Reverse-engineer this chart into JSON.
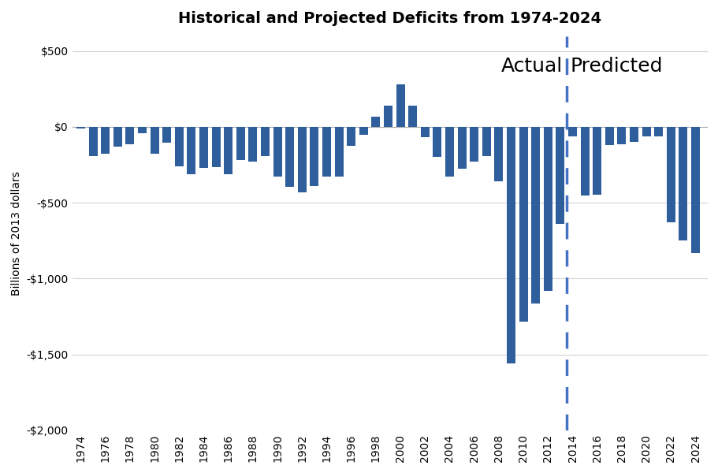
{
  "title": "Historical and Projected Deficits from 1974-2024",
  "ylabel": "Billions of 2013 dollars",
  "ylim": [
    -2000,
    600
  ],
  "yticks": [
    500,
    0,
    -500,
    -1000,
    -1500,
    -2000
  ],
  "ytick_labels": [
    "$500",
    "$0",
    "-$500",
    "-$1,000",
    "-$1,500",
    "-$2,000"
  ],
  "bar_color": "#2E5E9B",
  "dashed_line_x": 2013.5,
  "actual_label": "Actual",
  "predicted_label": "Predicted",
  "background_color": "#FFFFFF",
  "years": [
    1974,
    1975,
    1976,
    1977,
    1978,
    1979,
    1980,
    1981,
    1982,
    1983,
    1984,
    1985,
    1986,
    1987,
    1988,
    1989,
    1990,
    1991,
    1992,
    1993,
    1994,
    1995,
    1996,
    1997,
    1998,
    1999,
    2000,
    2001,
    2002,
    2003,
    2004,
    2005,
    2006,
    2007,
    2008,
    2009,
    2010,
    2011,
    2012,
    2013,
    2014,
    2015,
    2016,
    2017,
    2018,
    2019,
    2020,
    2021,
    2022,
    2023,
    2024
  ],
  "values": [
    -10,
    -195,
    -175,
    -130,
    -115,
    -40,
    -175,
    -105,
    -260,
    -310,
    -270,
    -265,
    -310,
    -220,
    -230,
    -190,
    -330,
    -395,
    -430,
    -390,
    -330,
    -325,
    -125,
    -50,
    70,
    140,
    280,
    140,
    -70,
    -200,
    -330,
    -275,
    -230,
    -190,
    -360,
    -1560,
    -1285,
    -1165,
    -1080,
    -640,
    -60,
    -450,
    -445,
    -120,
    -115,
    -100,
    -60,
    -60,
    -630,
    -750,
    -830
  ],
  "figsize": [
    9.12,
    6.0
  ],
  "dpi": 100,
  "title_fontsize": 14,
  "label_fontsize": 10,
  "tick_fontsize": 10,
  "annotation_fontsize": 18
}
